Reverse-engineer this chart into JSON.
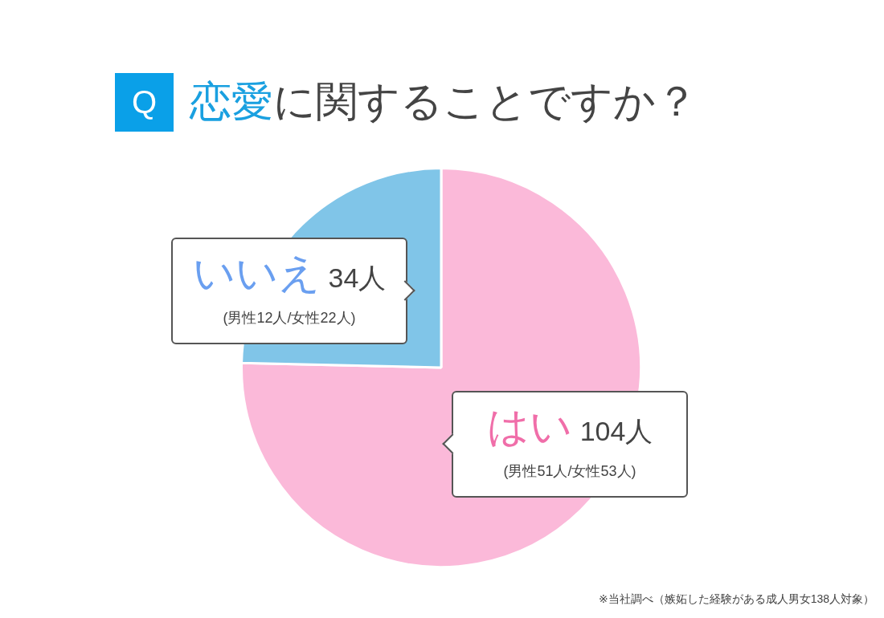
{
  "chart_data": {
    "type": "pie",
    "title": "Q 恋愛に関することですか？",
    "categories": [
      "はい",
      "いいえ"
    ],
    "values": [
      104,
      34
    ],
    "colors": [
      "#fbb9d9",
      "#80c5e8"
    ],
    "value_labels": [
      "104人",
      "34人"
    ],
    "legend": false,
    "annotations": [
      "(男性51人/女性53人)",
      "(男性12人/女性22人)",
      "※当社調べ（嫉妬した経験がある成人男女138人対象）"
    ]
  }
}
